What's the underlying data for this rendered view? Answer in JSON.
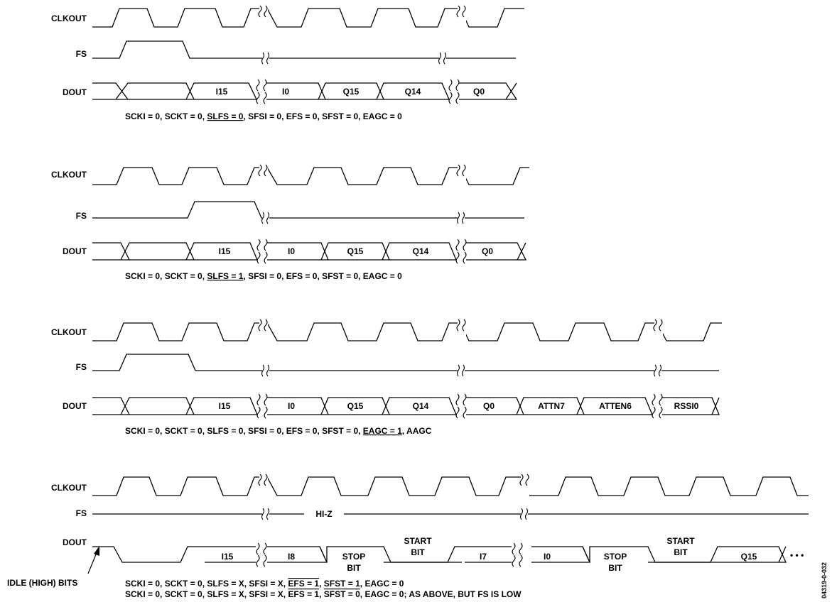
{
  "signals": {
    "clkout": "CLKOUT",
    "fs": "FS",
    "dout": "DOUT"
  },
  "hiz_label": "HI-Z",
  "idle_label": "IDLE (HIGH) BITS",
  "figure_id": "04319-0-032",
  "diagrams": [
    {
      "cells": [
        "I15",
        "I0",
        "Q15",
        "Q14",
        "Q0"
      ],
      "condition": {
        "parts": [
          {
            "text": "SCKI = 0, SCKT = 0, "
          },
          {
            "text": "SLFS = 0",
            "style": "underline"
          },
          {
            "text": ", SFSI = 0, EFS = 0, SFST = 0, EAGC = 0"
          }
        ]
      }
    },
    {
      "cells": [
        "I15",
        "I0",
        "Q15",
        "Q14",
        "Q0"
      ],
      "condition": {
        "parts": [
          {
            "text": "SCKI = 0, SCKT = 0, "
          },
          {
            "text": "SLFS = 1",
            "style": "underline"
          },
          {
            "text": ", SFSI = 0, EFS = 0, SFST = 0, EAGC = 0"
          }
        ]
      }
    },
    {
      "cells": [
        "I15",
        "I0",
        "Q15",
        "Q14",
        "Q0",
        "ATTN7",
        "ATTEN6",
        "RSSI0"
      ],
      "condition": {
        "parts": [
          {
            "text": "SCKI = 0, SCKT = 0, SLFS = 0, SFSI = 0, EFS = 0, SFST = 0, "
          },
          {
            "text": "EAGC = 1",
            "style": "underline"
          },
          {
            "text": ", AAGC"
          }
        ]
      }
    },
    {
      "cells": [
        "I15",
        "I8",
        "I7",
        "I0",
        "Q15"
      ],
      "stop_bit": [
        "STOP",
        "BIT"
      ],
      "start_bit": [
        "START",
        "BIT"
      ],
      "condition_lines": [
        {
          "parts": [
            {
              "text": "SCKI = 0, SCKT = 0, SLFS = X, SFSI = X, "
            },
            {
              "text": "EFS = 1",
              "style": "both"
            },
            {
              "text": ", SFST = 1, EAGC = 0"
            }
          ]
        },
        {
          "parts": [
            {
              "text": "SCKI = 0, SCKT = 0, SLFS = X, SFSI = X, "
            },
            {
              "text": "EFS = 1",
              "style": "both"
            },
            {
              "text": ", "
            },
            {
              "text": "SFST = 0",
              "style": "both"
            },
            {
              "text": ", EAGC = 0; AS ABOVE, BUT FS IS LOW"
            }
          ]
        }
      ],
      "ellipsis": "• • •"
    }
  ]
}
